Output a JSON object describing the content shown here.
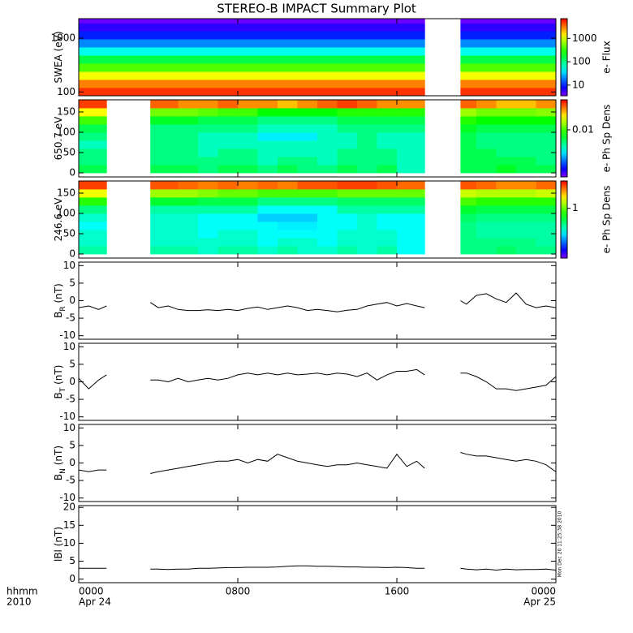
{
  "chart_data": [
    {
      "type": "heatmap",
      "title": "STEREO-B IMPACT Summary Plot",
      "ylabel": "SWEA (eV)",
      "ylog": true,
      "xlim": [
        0,
        24
      ],
      "xticks": [
        0,
        8,
        16,
        24
      ],
      "ylim": [
        85,
        2300
      ],
      "yticks": [
        100,
        1000
      ],
      "x_edges": [
        0,
        1.4,
        3.6,
        5,
        6,
        7,
        8,
        9,
        10,
        11,
        12,
        13,
        14,
        15,
        16,
        17.4,
        19.2,
        20,
        21,
        22,
        23,
        24
      ],
      "y_edges": [
        85,
        120,
        170,
        240,
        340,
        480,
        680,
        960,
        1350,
        1900,
        2300
      ],
      "z": [
        [
          5000,
          5000,
          5000,
          5000,
          5000,
          5000,
          5000,
          5000,
          5000,
          5000,
          5000,
          5000,
          5000,
          5000,
          5000,
          null,
          5000,
          5000,
          5000,
          5000,
          5000
        ],
        [
          3000,
          3000,
          3000,
          3000,
          3000,
          3000,
          3000,
          3000,
          3000,
          3000,
          3000,
          3000,
          3000,
          3000,
          3000,
          null,
          3000,
          3000,
          3000,
          3000,
          3000
        ],
        [
          1200,
          1200,
          1200,
          1200,
          1200,
          1200,
          1200,
          1200,
          1200,
          1200,
          1200,
          1200,
          1200,
          1200,
          1200,
          null,
          1200,
          1200,
          1200,
          1200,
          1200
        ],
        [
          400,
          400,
          400,
          400,
          400,
          400,
          400,
          400,
          400,
          400,
          400,
          400,
          400,
          400,
          400,
          null,
          400,
          400,
          400,
          400,
          400
        ],
        [
          150,
          150,
          150,
          150,
          150,
          150,
          150,
          150,
          150,
          150,
          150,
          150,
          150,
          150,
          150,
          null,
          150,
          150,
          150,
          150,
          150
        ],
        [
          50,
          50,
          50,
          50,
          50,
          50,
          50,
          50,
          50,
          50,
          50,
          50,
          50,
          50,
          50,
          null,
          50,
          50,
          50,
          50,
          50
        ],
        [
          20,
          20,
          20,
          20,
          20,
          20,
          20,
          20,
          20,
          20,
          20,
          20,
          20,
          20,
          20,
          null,
          20,
          20,
          20,
          20,
          20
        ],
        [
          10,
          10,
          10,
          10,
          10,
          10,
          10,
          10,
          10,
          10,
          10,
          10,
          10,
          10,
          10,
          null,
          10,
          10,
          10,
          10,
          10
        ],
        [
          6,
          6,
          6,
          6,
          6,
          6,
          6,
          6,
          6,
          6,
          6,
          6,
          6,
          6,
          6,
          null,
          6,
          6,
          6,
          6,
          6
        ],
        [
          4,
          4,
          4,
          4,
          4,
          4,
          4,
          4,
          4,
          4,
          4,
          4,
          4,
          4,
          4,
          null,
          4,
          4,
          4,
          4,
          4
        ]
      ],
      "clim": [
        3.5,
        7000
      ],
      "cticks": [
        10,
        100,
        1000
      ],
      "clabel": "e- Flux"
    },
    {
      "type": "heatmap",
      "ylabel": "650.7 eV",
      "ylog": false,
      "xlim": [
        0,
        24
      ],
      "xticks": [
        0,
        8,
        16,
        24
      ],
      "ylim": [
        -10,
        180
      ],
      "yticks": [
        0,
        50,
        100,
        150
      ],
      "x_edges": [
        0,
        1.4,
        3.6,
        5,
        6,
        7,
        8,
        9,
        10,
        11,
        12,
        13,
        14,
        15,
        16,
        17.4,
        19.2,
        20,
        21,
        22,
        23,
        24
      ],
      "y_edges": [
        0,
        20,
        40,
        60,
        80,
        100,
        120,
        140,
        160,
        180
      ],
      "z": [
        [
          0.006,
          null,
          0.006,
          0.006,
          0.005,
          0.006,
          0.006,
          0.005,
          0.006,
          0.005,
          0.005,
          0.006,
          0.005,
          0.006,
          0.004,
          null,
          0.006,
          0.006,
          0.007,
          0.006,
          0.006
        ],
        [
          0.005,
          null,
          0.005,
          0.005,
          0.005,
          0.005,
          0.005,
          0.004,
          0.005,
          0.005,
          0.004,
          0.005,
          0.005,
          0.005,
          0.004,
          null,
          0.006,
          0.006,
          0.006,
          0.006,
          0.005
        ],
        [
          0.005,
          null,
          0.005,
          0.005,
          0.004,
          0.005,
          0.005,
          0.004,
          0.004,
          0.004,
          0.004,
          0.005,
          0.005,
          0.005,
          0.004,
          null,
          0.006,
          0.006,
          0.005,
          0.005,
          0.005
        ],
        [
          0.004,
          null,
          0.005,
          0.005,
          0.004,
          0.004,
          0.004,
          0.004,
          0.004,
          0.004,
          0.004,
          0.004,
          0.005,
          0.004,
          0.004,
          null,
          0.006,
          0.005,
          0.005,
          0.005,
          0.005
        ],
        [
          0.005,
          null,
          0.005,
          0.005,
          0.004,
          0.004,
          0.004,
          0.003,
          0.003,
          0.003,
          0.004,
          0.004,
          0.005,
          0.004,
          0.004,
          null,
          0.006,
          0.005,
          0.005,
          0.005,
          0.005
        ],
        [
          0.006,
          null,
          0.005,
          0.005,
          0.005,
          0.005,
          0.005,
          0.004,
          0.004,
          0.004,
          0.004,
          0.005,
          0.005,
          0.005,
          0.005,
          null,
          0.007,
          0.006,
          0.006,
          0.006,
          0.006
        ],
        [
          0.01,
          null,
          0.007,
          0.007,
          0.006,
          0.006,
          0.006,
          0.005,
          0.005,
          0.005,
          0.005,
          0.006,
          0.006,
          0.006,
          0.006,
          null,
          0.009,
          0.008,
          0.008,
          0.008,
          0.008
        ],
        [
          0.02,
          null,
          0.012,
          0.012,
          0.011,
          0.01,
          0.01,
          0.008,
          0.008,
          0.008,
          0.008,
          0.009,
          0.009,
          0.009,
          0.009,
          null,
          0.014,
          0.012,
          0.012,
          0.012,
          0.013
        ],
        [
          0.04,
          null,
          0.035,
          0.03,
          0.03,
          0.035,
          0.03,
          0.03,
          0.025,
          0.03,
          0.035,
          0.04,
          0.035,
          0.03,
          0.03,
          null,
          0.035,
          0.03,
          0.025,
          0.025,
          0.03
        ]
      ],
      "clim": [
        0.0008,
        0.05
      ],
      "cticks": [
        0.01
      ],
      "clabel": "e- Ph Sp Dens"
    },
    {
      "type": "heatmap",
      "ylabel": "246.6 eV",
      "ylog": false,
      "xlim": [
        0,
        24
      ],
      "xticks": [
        0,
        8,
        16,
        24
      ],
      "ylim": [
        -10,
        180
      ],
      "yticks": [
        0,
        50,
        100,
        150
      ],
      "x_edges": [
        0,
        1.4,
        3.6,
        5,
        6,
        7,
        8,
        9,
        10,
        11,
        12,
        13,
        14,
        15,
        16,
        17.4,
        19.2,
        20,
        21,
        22,
        23,
        24
      ],
      "y_edges": [
        0,
        20,
        40,
        60,
        80,
        100,
        120,
        140,
        160,
        180
      ],
      "z": [
        [
          0.4,
          null,
          0.4,
          0.4,
          0.35,
          0.4,
          0.4,
          0.35,
          0.4,
          0.35,
          0.35,
          0.4,
          0.35,
          0.4,
          0.3,
          null,
          0.45,
          0.45,
          0.5,
          0.45,
          0.45
        ],
        [
          0.35,
          null,
          0.35,
          0.35,
          0.35,
          0.35,
          0.35,
          0.3,
          0.35,
          0.35,
          0.3,
          0.35,
          0.35,
          0.35,
          0.3,
          null,
          0.45,
          0.45,
          0.45,
          0.45,
          0.4
        ],
        [
          0.35,
          null,
          0.35,
          0.35,
          0.3,
          0.35,
          0.35,
          0.3,
          0.3,
          0.3,
          0.3,
          0.35,
          0.35,
          0.35,
          0.3,
          null,
          0.45,
          0.4,
          0.4,
          0.4,
          0.4
        ],
        [
          0.3,
          null,
          0.35,
          0.35,
          0.3,
          0.3,
          0.3,
          0.3,
          0.28,
          0.28,
          0.3,
          0.3,
          0.35,
          0.3,
          0.3,
          null,
          0.45,
          0.4,
          0.4,
          0.4,
          0.4
        ],
        [
          0.35,
          null,
          0.35,
          0.35,
          0.3,
          0.3,
          0.3,
          0.25,
          0.25,
          0.25,
          0.3,
          0.3,
          0.35,
          0.3,
          0.3,
          null,
          0.5,
          0.45,
          0.45,
          0.45,
          0.45
        ],
        [
          0.45,
          null,
          0.4,
          0.4,
          0.4,
          0.4,
          0.4,
          0.3,
          0.3,
          0.3,
          0.3,
          0.4,
          0.4,
          0.4,
          0.4,
          null,
          0.6,
          0.55,
          0.55,
          0.55,
          0.55
        ],
        [
          0.8,
          null,
          0.6,
          0.6,
          0.55,
          0.55,
          0.55,
          0.45,
          0.45,
          0.45,
          0.45,
          0.5,
          0.5,
          0.5,
          0.5,
          null,
          0.9,
          0.8,
          0.8,
          0.8,
          0.8
        ],
        [
          1.6,
          null,
          1.2,
          1.2,
          1.1,
          1.0,
          1.0,
          0.9,
          0.9,
          0.9,
          0.9,
          1.0,
          1.0,
          1.0,
          1.0,
          null,
          1.4,
          1.3,
          1.3,
          1.3,
          1.4
        ],
        [
          3.2,
          null,
          3,
          2.8,
          2.6,
          2.8,
          2.6,
          2.8,
          2.6,
          3,
          3,
          3.2,
          3.2,
          3,
          2.8,
          null,
          3,
          2.8,
          2.5,
          2.5,
          2.8
        ]
      ],
      "clim": [
        0.08,
        4
      ],
      "cticks": [
        1
      ],
      "clabel": "e- Ph Sp Dens"
    },
    {
      "type": "line",
      "ylabel": "B",
      "ylabel_sub": "R",
      "ylabel_unit": "(nT)",
      "color": "#000000",
      "xlim": [
        0,
        24
      ],
      "xticks": [
        0,
        8,
        16,
        24
      ],
      "ylim": [
        -11,
        11
      ],
      "yticks": [
        -10,
        -5,
        0,
        5,
        10
      ],
      "x": [
        0,
        0.5,
        1,
        1.4,
        2.5,
        3.6,
        4,
        4.5,
        5,
        5.5,
        6,
        6.5,
        7,
        7.5,
        8,
        8.5,
        9,
        9.5,
        10,
        10.5,
        11,
        11.5,
        12,
        12.5,
        13,
        13.5,
        14,
        14.5,
        15,
        15.5,
        16,
        16.5,
        17,
        17.4,
        18.3,
        19.2,
        19.5,
        20,
        20.5,
        21,
        21.5,
        22,
        22.5,
        23,
        23.5,
        24
      ],
      "values": [
        -2,
        -1.5,
        -2.5,
        -1.5,
        null,
        -0.5,
        -2,
        -1.5,
        -2.5,
        -2.8,
        -2.8,
        -2.6,
        -2.8,
        -2.5,
        -2.8,
        -2.2,
        -1.8,
        -2.5,
        -2,
        -1.5,
        -2,
        -2.8,
        -2.5,
        -2.8,
        -3.2,
        -2.7,
        -2.5,
        -1.5,
        -1,
        -0.5,
        -1.5,
        -0.8,
        -1.5,
        -2,
        null,
        0,
        -1,
        1.5,
        2,
        0.5,
        -0.5,
        2.2,
        -1,
        -2,
        -1.5,
        -2
      ]
    },
    {
      "type": "line",
      "ylabel": "B",
      "ylabel_sub": "T",
      "ylabel_unit": "(nT)",
      "color": "#000000",
      "xlim": [
        0,
        24
      ],
      "xticks": [
        0,
        8,
        16,
        24
      ],
      "ylim": [
        -11,
        11
      ],
      "yticks": [
        -10,
        -5,
        0,
        5,
        10
      ],
      "x": [
        0,
        0.5,
        1,
        1.4,
        2.5,
        3.6,
        4,
        4.5,
        5,
        5.5,
        6,
        6.5,
        7,
        7.5,
        8,
        8.5,
        9,
        9.5,
        10,
        10.5,
        11,
        11.5,
        12,
        12.5,
        13,
        13.5,
        14,
        14.5,
        15,
        15.5,
        16,
        16.5,
        17,
        17.4,
        18.3,
        19.2,
        19.5,
        20,
        20.5,
        21,
        21.5,
        22,
        22.5,
        23,
        23.5,
        24
      ],
      "values": [
        1,
        -2,
        0.5,
        2,
        null,
        0.5,
        0.5,
        0,
        1,
        0,
        0.5,
        1,
        0.5,
        1,
        2,
        2.5,
        2,
        2.5,
        2,
        2.5,
        2,
        2.2,
        2.5,
        2,
        2.5,
        2.2,
        1.5,
        2.5,
        0.5,
        2,
        3,
        3,
        3.5,
        2,
        null,
        2.5,
        2.5,
        1.5,
        0,
        -2,
        -2,
        -2.5,
        -2,
        -1.5,
        -1,
        1.5
      ]
    },
    {
      "type": "line",
      "ylabel": "B",
      "ylabel_sub": "N",
      "ylabel_unit": "(nT)",
      "color": "#000000",
      "xlim": [
        0,
        24
      ],
      "xticks": [
        0,
        8,
        16,
        24
      ],
      "ylim": [
        -11,
        11
      ],
      "yticks": [
        -10,
        -5,
        0,
        5,
        10
      ],
      "x": [
        0,
        0.5,
        1,
        1.4,
        2.5,
        3.6,
        4,
        4.5,
        5,
        5.5,
        6,
        6.5,
        7,
        7.5,
        8,
        8.5,
        9,
        9.5,
        10,
        10.5,
        11,
        11.5,
        12,
        12.5,
        13,
        13.5,
        14,
        14.5,
        15,
        15.5,
        16,
        16.5,
        17,
        17.4,
        18.3,
        19.2,
        19.5,
        20,
        20.5,
        21,
        21.5,
        22,
        22.5,
        23,
        23.5,
        24
      ],
      "values": [
        -2,
        -2.5,
        -2,
        -2,
        null,
        -3,
        -2.5,
        -2,
        -1.5,
        -1,
        -0.5,
        0,
        0.5,
        0.5,
        1,
        0,
        1,
        0.5,
        2.5,
        1.5,
        0.5,
        0,
        -0.5,
        -1,
        -0.5,
        -0.5,
        0,
        -0.5,
        -1,
        -1.5,
        2.5,
        -1,
        0.5,
        -1.5,
        null,
        3,
        2.5,
        2,
        2,
        1.5,
        1,
        0.5,
        1,
        0.5,
        -0.5,
        -2.5
      ]
    },
    {
      "type": "line",
      "ylabel": "lBl (nT)",
      "color": "#000000",
      "xlim": [
        0,
        24
      ],
      "ylim": [
        -1,
        20.5
      ],
      "yticks": [
        0,
        5,
        10,
        15,
        20
      ],
      "xticks": [
        {
          "value": 0,
          "label": "0000"
        },
        {
          "value": 8,
          "label": "0800"
        },
        {
          "value": 16,
          "label": "1600"
        },
        {
          "value": 24,
          "label": "0000"
        }
      ],
      "xtick_dates": [
        {
          "value": 0,
          "label": "Apr 24"
        },
        {
          "value": 24,
          "label": "Apr 25"
        }
      ],
      "xlabel": "hhmm",
      "xlabel_year": "2010",
      "annotation": "Mon Dec 20 11:25:38 2010",
      "x": [
        0,
        0.5,
        1,
        1.4,
        2.5,
        3.6,
        4,
        4.5,
        5,
        5.5,
        6,
        6.5,
        7,
        7.5,
        8,
        8.5,
        9,
        9.5,
        10,
        10.5,
        11,
        11.5,
        12,
        12.5,
        13,
        13.5,
        14,
        14.5,
        15,
        15.5,
        16,
        16.5,
        17,
        17.4,
        18.3,
        19.2,
        19.5,
        20,
        20.5,
        21,
        21.5,
        22,
        22.5,
        23,
        23.5,
        24
      ],
      "values": [
        3,
        3,
        3,
        3,
        null,
        2.8,
        2.8,
        2.7,
        2.8,
        2.8,
        3,
        3,
        3.1,
        3.2,
        3.2,
        3.3,
        3.3,
        3.3,
        3.4,
        3.6,
        3.7,
        3.7,
        3.6,
        3.6,
        3.5,
        3.4,
        3.4,
        3.3,
        3.3,
        3.2,
        3.3,
        3.2,
        3,
        3,
        null,
        3,
        2.8,
        2.6,
        2.8,
        2.5,
        2.8,
        2.6,
        2.7,
        2.7,
        2.8,
        2.5
      ]
    }
  ]
}
